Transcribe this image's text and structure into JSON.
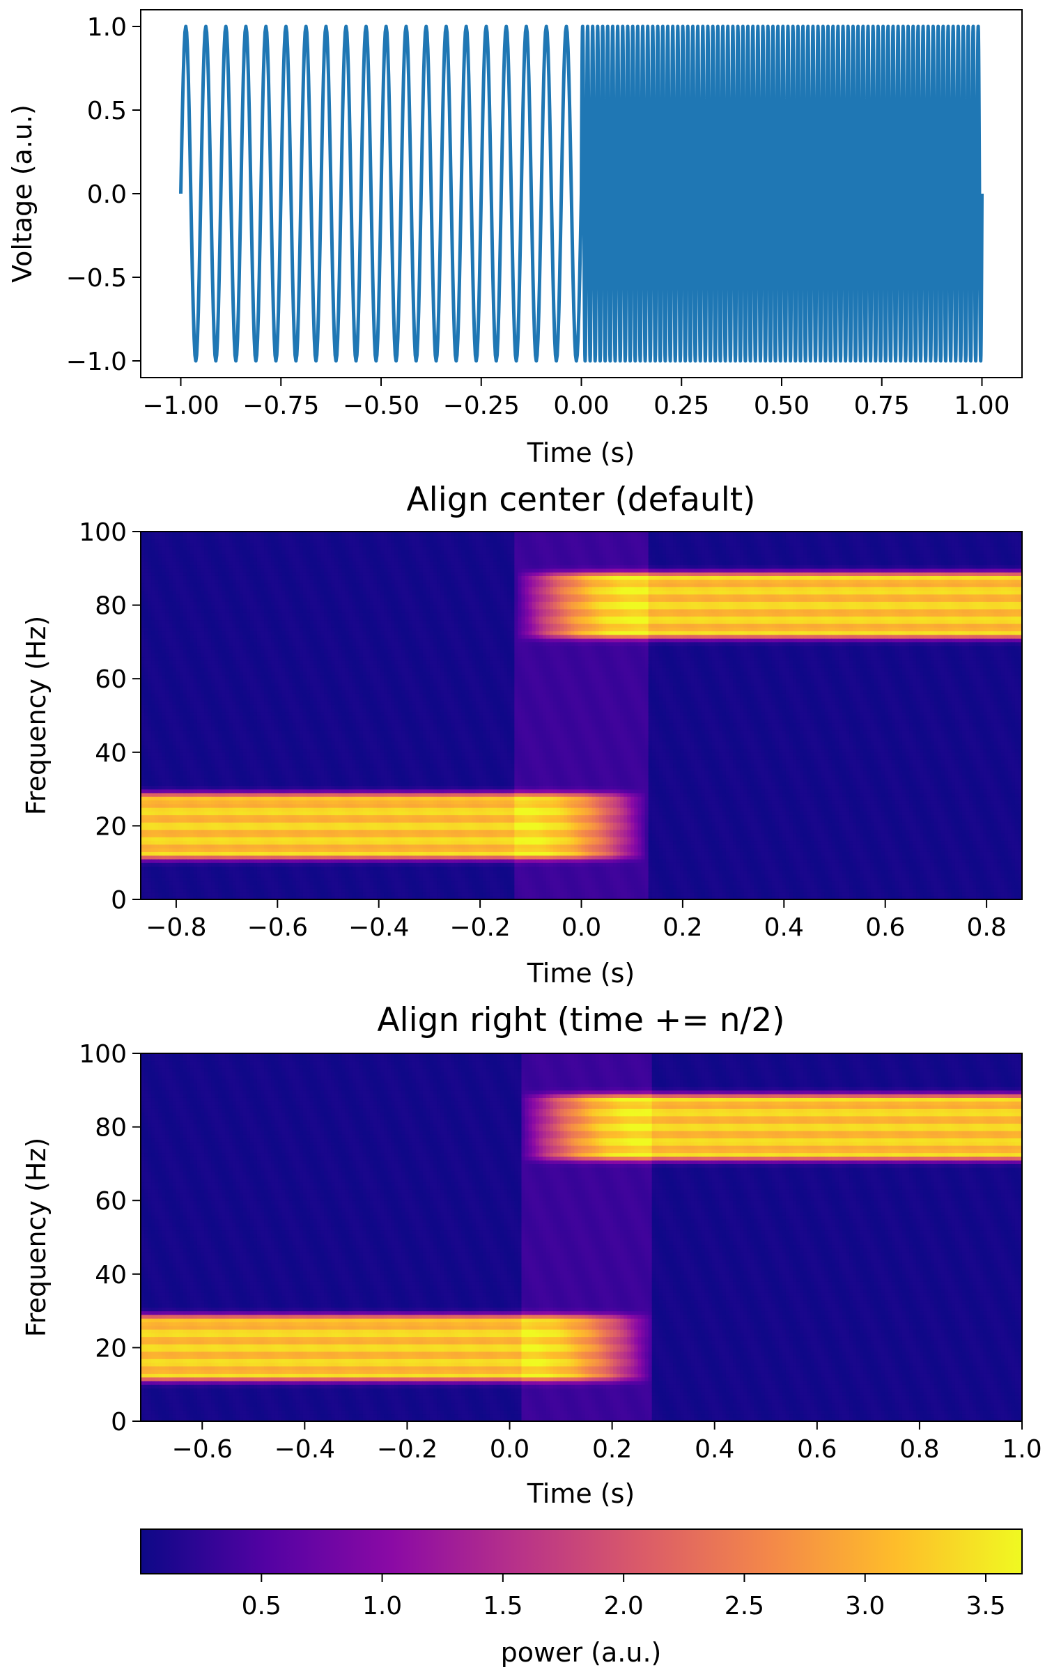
{
  "chart_data": [
    {
      "type": "line",
      "title": "",
      "xlabel": "Time (s)",
      "ylabel": "Voltage (a.u.)",
      "xlim": [
        -1.1,
        1.1
      ],
      "ylim": [
        -1.1,
        1.1
      ],
      "xticks": [
        -1.0,
        -0.75,
        -0.5,
        -0.25,
        0.0,
        0.25,
        0.5,
        0.75,
        1.0
      ],
      "xtick_labels": [
        "−1.00",
        "−0.75",
        "−0.50",
        "−0.25",
        "0.00",
        "0.25",
        "0.50",
        "0.75",
        "1.00"
      ],
      "yticks": [
        1.0,
        0.5,
        0.0,
        -0.5,
        -1.0
      ],
      "ytick_labels": [
        "1.0",
        "0.5",
        "0.0",
        "−0.5",
        "−1.0"
      ],
      "series": [
        {
          "segments": [
            {
              "t_start": -1.0,
              "t_end": 0.0,
              "frequency_hz": 20,
              "amplitude": 1.0
            },
            {
              "t_start": 0.0,
              "t_end": 1.0,
              "frequency_hz": 80,
              "amplitude": 1.0
            }
          ]
        }
      ],
      "colors": {
        "line": "#1f77b4"
      },
      "grid": false
    },
    {
      "type": "heatmap",
      "title": "Align center (default)",
      "xlabel": "Time (s)",
      "ylabel": "Frequency (Hz)",
      "xlim": [
        -0.87,
        0.87
      ],
      "ylim": [
        0,
        100
      ],
      "xticks": [
        -0.8,
        -0.6,
        -0.4,
        -0.2,
        0.0,
        0.2,
        0.4,
        0.6,
        0.8
      ],
      "xtick_labels": [
        "−0.8",
        "−0.6",
        "−0.4",
        "−0.2",
        "0.0",
        "0.2",
        "0.4",
        "0.6",
        "0.8"
      ],
      "yticks": [
        100,
        80,
        60,
        40,
        20,
        0
      ],
      "ytick_labels": [
        "100",
        "80",
        "60",
        "40",
        "20",
        "0"
      ],
      "bands": [
        {
          "freq_hz": 20,
          "t_start": -0.87,
          "t_end": 0.13,
          "fade_start": -0.12
        },
        {
          "freq_hz": 80,
          "t_start": -0.13,
          "t_end": 0.87,
          "fade_end": 0.12
        }
      ],
      "transition_window": [
        -0.13,
        0.13
      ],
      "colormap": "plasma"
    },
    {
      "type": "heatmap",
      "title": "Align right (time += n/2)",
      "xlabel": "Time (s)",
      "ylabel": "Frequency (Hz)",
      "xlim": [
        -0.72,
        1.0
      ],
      "ylim": [
        0,
        100
      ],
      "xticks": [
        -0.6,
        -0.4,
        -0.2,
        0.0,
        0.2,
        0.4,
        0.6,
        0.8,
        1.0
      ],
      "xtick_labels": [
        "−0.6",
        "−0.4",
        "−0.2",
        "0.0",
        "0.2",
        "0.4",
        "0.6",
        "0.8",
        "1.0"
      ],
      "yticks": [
        100,
        80,
        60,
        40,
        20,
        0
      ],
      "ytick_labels": [
        "100",
        "80",
        "60",
        "40",
        "20",
        "0"
      ],
      "bands": [
        {
          "freq_hz": 20,
          "t_start": -0.72,
          "t_end": 0.28,
          "fade_start": 0.02
        },
        {
          "freq_hz": 80,
          "t_start": 0.02,
          "t_end": 1.0,
          "fade_end": 0.27
        }
      ],
      "transition_window": [
        0.02,
        0.28
      ],
      "colormap": "plasma"
    }
  ],
  "colorbar": {
    "label": "power (a.u.)",
    "range": [
      0.0,
      3.65
    ],
    "ticks": [
      0.5,
      1.0,
      1.5,
      2.0,
      2.5,
      3.0,
      3.5
    ],
    "tick_labels": [
      "0.5",
      "1.0",
      "1.5",
      "2.0",
      "2.5",
      "3.0",
      "3.5"
    ],
    "colormap": "plasma",
    "orientation": "horizontal"
  },
  "colormap_stops": [
    "#0d0887",
    "#5302a3",
    "#8b0aa5",
    "#b83289",
    "#db5c68",
    "#f48849",
    "#febd2a",
    "#f0f921"
  ]
}
